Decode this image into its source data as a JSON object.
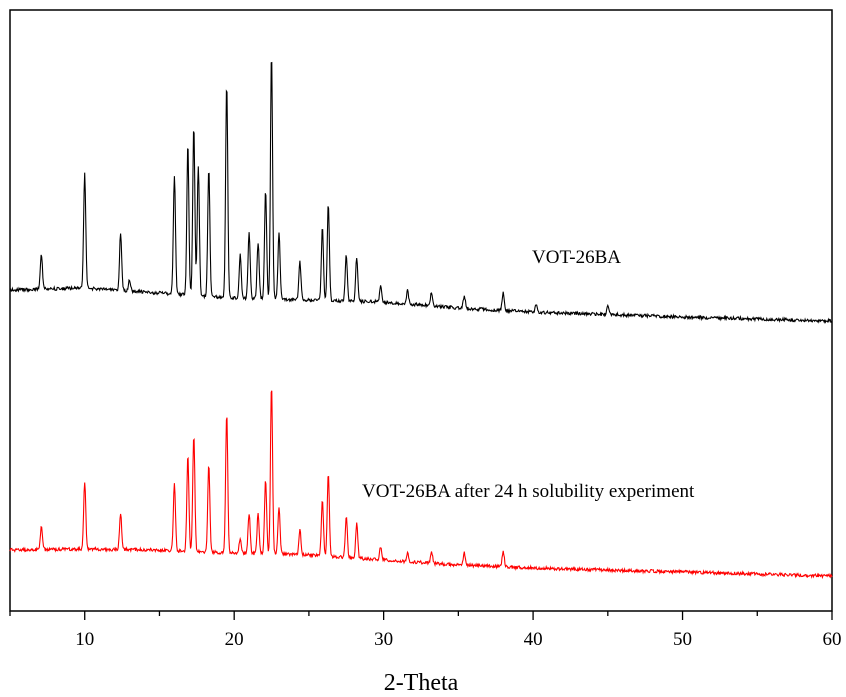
{
  "chart_data": {
    "type": "line",
    "title": "",
    "xlabel": "2-Theta",
    "ylabel": "",
    "xlim": [
      5,
      60
    ],
    "xticks": [
      10,
      20,
      30,
      40,
      50,
      60
    ],
    "grid": false,
    "y_axis_labels": false,
    "series": [
      {
        "name": "VOT-26BA",
        "color": "#000000",
        "baseline": [
          [
            5,
            290
          ],
          [
            10,
            288
          ],
          [
            15,
            293
          ],
          [
            20,
            298
          ],
          [
            25,
            300
          ],
          [
            30,
            302
          ],
          [
            35,
            308
          ],
          [
            40,
            312
          ],
          [
            50,
            317
          ],
          [
            60,
            321
          ]
        ],
        "peaks": [
          [
            7.1,
            255
          ],
          [
            10.0,
            174
          ],
          [
            12.4,
            233
          ],
          [
            13.0,
            280
          ],
          [
            16.0,
            175
          ],
          [
            16.9,
            142
          ],
          [
            17.3,
            125
          ],
          [
            17.6,
            165
          ],
          [
            18.3,
            168
          ],
          [
            19.5,
            82
          ],
          [
            20.4,
            255
          ],
          [
            21.0,
            232
          ],
          [
            21.6,
            242
          ],
          [
            22.1,
            190
          ],
          [
            22.5,
            53
          ],
          [
            23.0,
            233
          ],
          [
            24.4,
            262
          ],
          [
            25.9,
            228
          ],
          [
            26.3,
            203
          ],
          [
            27.5,
            255
          ],
          [
            28.2,
            258
          ],
          [
            29.8,
            285
          ],
          [
            31.6,
            290
          ],
          [
            33.2,
            293
          ],
          [
            35.4,
            296
          ],
          [
            38.0,
            293
          ],
          [
            40.2,
            305
          ],
          [
            45.0,
            307
          ]
        ]
      },
      {
        "name": "VOT-26BA after 24 h solubility experiment",
        "color": "#ff0000",
        "baseline": [
          [
            5,
            550
          ],
          [
            10,
            549
          ],
          [
            15,
            550
          ],
          [
            20,
            553
          ],
          [
            25,
            555
          ],
          [
            30,
            560
          ],
          [
            35,
            565
          ],
          [
            40,
            568
          ],
          [
            50,
            572
          ],
          [
            60,
            576
          ]
        ],
        "peaks": [
          [
            7.1,
            526
          ],
          [
            10.0,
            482
          ],
          [
            12.4,
            513
          ],
          [
            16.0,
            484
          ],
          [
            16.9,
            456
          ],
          [
            17.3,
            435
          ],
          [
            18.3,
            465
          ],
          [
            19.5,
            413
          ],
          [
            20.4,
            538
          ],
          [
            21.0,
            513
          ],
          [
            21.6,
            514
          ],
          [
            22.1,
            480
          ],
          [
            22.5,
            385
          ],
          [
            23.0,
            507
          ],
          [
            24.4,
            530
          ],
          [
            25.9,
            500
          ],
          [
            26.3,
            474
          ],
          [
            27.5,
            517
          ],
          [
            28.2,
            524
          ],
          [
            29.8,
            547
          ],
          [
            31.6,
            552
          ],
          [
            33.2,
            552
          ],
          [
            35.4,
            553
          ],
          [
            38.0,
            551
          ]
        ]
      }
    ],
    "annotations": [
      {
        "text": "VOT-26BA",
        "series": 0,
        "color": "#000000"
      },
      {
        "text": "VOT-26BA after 24 h solubility experiment",
        "series": 1,
        "color": "#ff0000"
      }
    ]
  }
}
